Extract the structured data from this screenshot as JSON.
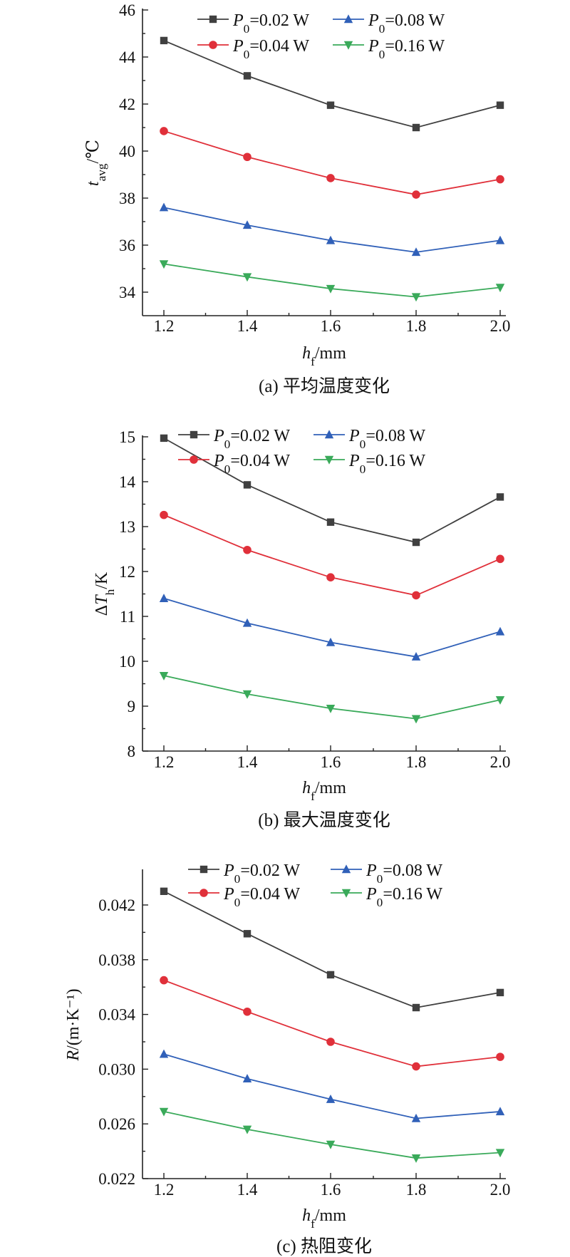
{
  "chart_data": [
    {
      "type": "line",
      "caption": "(a) 平均温度变化",
      "xlabel": "h_f/mm",
      "ylabel": "t_avg/℃",
      "x": [
        1.2,
        1.4,
        1.6,
        1.8,
        2.0
      ],
      "xticks": [
        "1.2",
        "1.4",
        "1.6",
        "1.8",
        "2.0"
      ],
      "ylim": [
        33,
        46
      ],
      "yticks": [
        34,
        36,
        38,
        40,
        42,
        44,
        46
      ],
      "ytick_labels": [
        "34",
        "36",
        "38",
        "40",
        "42",
        "44",
        "46"
      ],
      "series": [
        {
          "name": "P_0=0.02 W",
          "color": "#404040",
          "marker": "square",
          "values": [
            44.7,
            43.2,
            41.95,
            41.0,
            41.95
          ]
        },
        {
          "name": "P_0=0.04 W",
          "color": "#e0303a",
          "marker": "circle",
          "values": [
            40.85,
            39.75,
            38.85,
            38.15,
            38.8
          ]
        },
        {
          "name": "P_0=0.08 W",
          "color": "#3060b8",
          "marker": "triangle-up",
          "values": [
            37.6,
            36.85,
            36.2,
            35.7,
            36.2
          ]
        },
        {
          "name": "P_0=0.16 W",
          "color": "#3aaa5a",
          "marker": "triangle-down",
          "values": [
            35.2,
            34.65,
            34.15,
            33.8,
            34.2
          ]
        }
      ]
    },
    {
      "type": "line",
      "caption": "(b) 最大温度变化",
      "xlabel": "h_f/mm",
      "ylabel": "ΔT_h/K",
      "x": [
        1.2,
        1.4,
        1.6,
        1.8,
        2.0
      ],
      "xticks": [
        "1.2",
        "1.4",
        "1.6",
        "1.8",
        "2.0"
      ],
      "ylim": [
        8,
        15
      ],
      "yticks": [
        8,
        9,
        10,
        11,
        12,
        13,
        14,
        15
      ],
      "ytick_labels": [
        "8",
        "9",
        "10",
        "11",
        "12",
        "13",
        "14",
        "15"
      ],
      "series": [
        {
          "name": "P_0=0.02 W",
          "color": "#404040",
          "marker": "square",
          "values": [
            14.97,
            13.93,
            13.1,
            12.65,
            13.66
          ]
        },
        {
          "name": "P_0=0.04 W",
          "color": "#e0303a",
          "marker": "circle",
          "values": [
            13.26,
            12.48,
            11.87,
            11.47,
            12.28
          ]
        },
        {
          "name": "P_0=0.08 W",
          "color": "#3060b8",
          "marker": "triangle-up",
          "values": [
            11.4,
            10.85,
            10.42,
            10.1,
            10.66
          ]
        },
        {
          "name": "P_0=0.16 W",
          "color": "#3aaa5a",
          "marker": "triangle-down",
          "values": [
            9.68,
            9.27,
            8.95,
            8.72,
            9.14
          ]
        }
      ]
    },
    {
      "type": "line",
      "caption": "(c) 热阻变化",
      "xlabel": "h_f/mm",
      "ylabel": "R/(m·K⁻¹)",
      "x": [
        1.2,
        1.4,
        1.6,
        1.8,
        2.0
      ],
      "xticks": [
        "1.2",
        "1.4",
        "1.6",
        "1.8",
        "2.0"
      ],
      "ylim": [
        0.022,
        0.0445
      ],
      "yticks": [
        0.022,
        0.026,
        0.03,
        0.034,
        0.038,
        0.042
      ],
      "ytick_labels": [
        "0.022",
        "0.026",
        "0.030",
        "0.034",
        "0.038",
        "0.042"
      ],
      "series": [
        {
          "name": "P_0=0.02 W",
          "color": "#404040",
          "marker": "square",
          "values": [
            0.043,
            0.0399,
            0.0369,
            0.0345,
            0.0356
          ]
        },
        {
          "name": "P_0=0.04 W",
          "color": "#e0303a",
          "marker": "circle",
          "values": [
            0.0365,
            0.0342,
            0.032,
            0.0302,
            0.0309
          ]
        },
        {
          "name": "P_0=0.08 W",
          "color": "#3060b8",
          "marker": "triangle-up",
          "values": [
            0.0311,
            0.0293,
            0.0278,
            0.0264,
            0.0269
          ]
        },
        {
          "name": "P_0=0.16 W",
          "color": "#3aaa5a",
          "marker": "triangle-down",
          "values": [
            0.0269,
            0.0256,
            0.0245,
            0.0235,
            0.0239
          ]
        }
      ]
    }
  ]
}
